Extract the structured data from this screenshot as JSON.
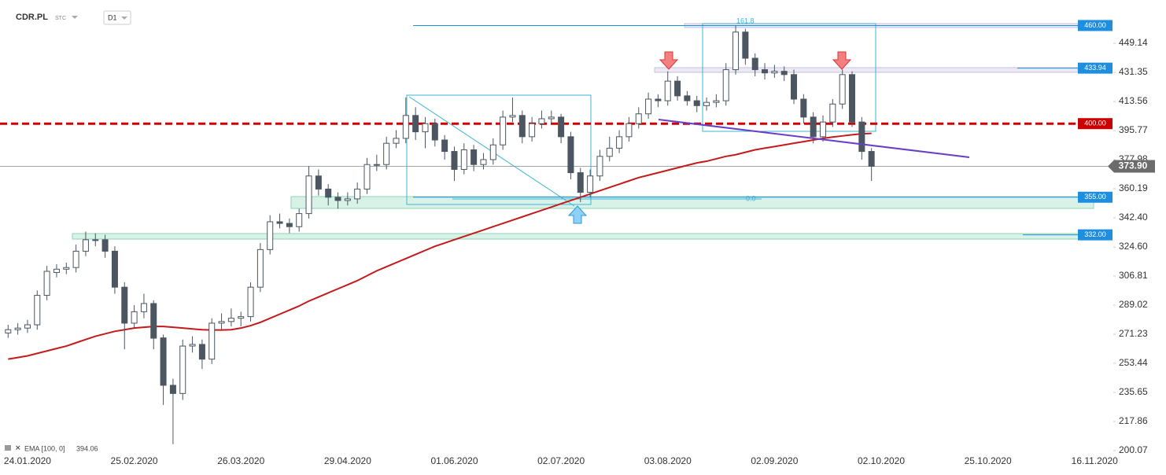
{
  "chart_data": {
    "type": "candlestick",
    "symbol": "CDR.PL",
    "source": "STC",
    "interval": "D1",
    "categories": [
      null,
      null,
      "24.01.2020",
      null,
      null,
      null,
      null,
      null,
      null,
      null,
      null,
      null,
      null,
      "25.02.2020",
      null,
      null,
      null,
      null,
      null,
      null,
      null,
      null,
      null,
      null,
      "26.03.2020",
      null,
      null,
      null,
      null,
      null,
      null,
      null,
      null,
      null,
      null,
      "29.04.2020",
      null,
      null,
      null,
      null,
      null,
      null,
      null,
      null,
      null,
      null,
      "01.06.2020",
      null,
      null,
      null,
      null,
      null,
      null,
      null,
      null,
      null,
      null,
      "02.07.2020",
      null,
      null,
      null,
      null,
      null,
      null,
      null,
      null,
      null,
      null,
      "03.08.2020",
      null,
      null,
      null,
      null,
      null,
      null,
      null,
      null,
      null,
      null,
      "02.09.2020",
      null,
      null,
      null,
      null,
      null,
      null,
      null,
      null,
      null,
      null,
      "02.10.2020",
      null,
      null,
      null,
      null,
      null,
      null,
      null,
      null,
      null,
      null,
      "25.10.2020",
      null,
      null,
      null,
      null,
      null,
      null,
      null,
      null,
      null,
      null,
      "16.11.2020"
    ],
    "open": [
      272,
      274,
      275,
      277,
      295,
      309,
      311,
      312,
      322,
      329,
      329,
      322,
      300,
      278,
      285,
      290,
      269,
      240,
      235,
      264,
      265,
      256,
      278,
      279,
      281,
      282,
      300,
      323,
      340,
      339,
      337,
      345,
      368,
      360,
      355,
      353,
      354,
      360,
      375,
      375,
      388,
      391,
      405,
      395,
      400,
      390,
      383,
      372,
      384,
      375,
      378,
      387,
      404,
      405,
      392,
      400,
      403,
      404,
      392,
      370,
      358,
      368,
      380,
      385,
      392,
      400,
      406,
      415,
      414,
      426,
      417,
      414,
      411,
      413,
      414,
      433,
      456,
      440,
      433,
      431,
      432,
      430,
      415,
      404,
      392,
      401,
      412,
      430,
      401,
      383,
      null,
      null,
      null,
      null,
      null,
      null,
      null,
      null,
      null,
      null,
      null,
      null,
      null,
      null,
      null,
      null,
      null,
      null,
      null,
      null,
      null,
      null,
      null
    ],
    "high": [
      277,
      278,
      280,
      298,
      313,
      314,
      315,
      326,
      334,
      333,
      332,
      325,
      303,
      289,
      296,
      292,
      271,
      244,
      268,
      270,
      268,
      281,
      284,
      287,
      285,
      303,
      327,
      344,
      345,
      342,
      348,
      374,
      372,
      363,
      358,
      358,
      364,
      379,
      381,
      392,
      396,
      416,
      410,
      404,
      403,
      393,
      386,
      388,
      387,
      382,
      391,
      408,
      416,
      408,
      404,
      408,
      408,
      406,
      395,
      373,
      372,
      384,
      392,
      396,
      404,
      410,
      419,
      418,
      432,
      429,
      420,
      417,
      416,
      418,
      437,
      460,
      458,
      443,
      437,
      436,
      435,
      433,
      418,
      407,
      405,
      415,
      433,
      432,
      404,
      385,
      null,
      null,
      null,
      null,
      null,
      null,
      null,
      null,
      null,
      null,
      null,
      null,
      null,
      null,
      null,
      null,
      null,
      null,
      null,
      null,
      null,
      null,
      null
    ],
    "low": [
      269,
      271,
      272,
      274,
      292,
      306,
      308,
      309,
      319,
      325,
      318,
      296,
      262,
      275,
      281,
      262,
      228,
      204,
      231,
      260,
      250,
      253,
      274,
      276,
      276,
      279,
      297,
      320,
      336,
      333,
      334,
      342,
      356,
      350,
      348,
      350,
      351,
      357,
      371,
      372,
      385,
      388,
      390,
      385,
      386,
      378,
      365,
      369,
      371,
      372,
      375,
      384,
      401,
      388,
      389,
      397,
      400,
      388,
      366,
      352,
      355,
      365,
      377,
      382,
      389,
      397,
      403,
      410,
      411,
      414,
      411,
      407,
      408,
      410,
      411,
      430,
      436,
      429,
      427,
      428,
      426,
      412,
      400,
      388,
      389,
      398,
      409,
      398,
      378,
      365,
      null,
      null,
      null,
      null,
      null,
      null,
      null,
      null,
      null,
      null,
      null,
      null,
      null,
      null,
      null,
      null,
      null,
      null,
      null,
      null,
      null,
      null,
      null
    ],
    "close": [
      274,
      275,
      277,
      295,
      309.7,
      311,
      312,
      322,
      329,
      329,
      322,
      300,
      278,
      285,
      290,
      268.8,
      240,
      235,
      264,
      265,
      256,
      278,
      279,
      281,
      282,
      300,
      323,
      340,
      339,
      337,
      345,
      368,
      360,
      355,
      353,
      354,
      360,
      375,
      375,
      388,
      391,
      405,
      395,
      400,
      390,
      383,
      372,
      384,
      375,
      378,
      387,
      404,
      405,
      392,
      400,
      403,
      404,
      392,
      370,
      358,
      368,
      380,
      385,
      392,
      400,
      406,
      415,
      414,
      426,
      417,
      414,
      411,
      413,
      414,
      433,
      456,
      440,
      433,
      431,
      432,
      430,
      415,
      404,
      392,
      401,
      412,
      430,
      401,
      383,
      373.9,
      null,
      null,
      null,
      null,
      null,
      null,
      null,
      null,
      null,
      null,
      null,
      null,
      null,
      null,
      null,
      null,
      null,
      null,
      null,
      null,
      null,
      null,
      null
    ],
    "up_color": "#ffffff",
    "down_color": "#4b5661",
    "ema": {
      "name": "EMA [100, 0]",
      "color": "#c41a1a",
      "values": [
        256,
        257,
        258,
        259.5,
        261,
        262.5,
        264,
        266,
        268,
        270,
        271.5,
        273,
        274,
        275,
        275.5,
        276,
        276,
        275.5,
        275,
        274.5,
        274,
        273.8,
        273.8,
        274,
        275,
        276.5,
        278.5,
        281,
        283.5,
        286,
        288.5,
        291.5,
        294,
        296.5,
        299,
        301.5,
        304,
        307,
        310,
        312.5,
        315,
        317.5,
        320,
        322.5,
        325,
        327,
        329,
        331,
        333,
        335,
        337,
        339,
        341,
        343,
        345,
        347,
        349,
        351,
        353,
        355,
        357,
        359,
        361,
        363,
        365,
        367,
        368.5,
        370,
        371.5,
        373,
        374.5,
        376,
        377,
        378.5,
        380,
        381,
        382.5,
        384,
        385,
        386,
        387,
        388,
        389,
        390,
        391,
        391.8,
        392.5,
        393.2,
        393.8,
        394.06,
        null,
        null,
        null,
        null,
        null,
        null,
        null,
        null,
        null,
        null,
        null,
        null,
        null,
        null,
        null,
        null,
        null,
        null,
        null,
        null,
        null,
        null,
        null
      ]
    },
    "ylim": [
      199.1,
      475.6
    ],
    "yticks": [
      200.07,
      217.86,
      235.65,
      253.44,
      271.23,
      289.02,
      306.81,
      {
        "value": 324.6,
        "label": "324.60"
      },
      {
        "value": 342.4,
        "label": "342.40"
      },
      360.19,
      377.98,
      395.77,
      413.56,
      431.35,
      449.14
    ],
    "levels": [
      {
        "value": 460,
        "label": "460.00",
        "color": "#1e8fe0"
      },
      {
        "value": 433.94,
        "color": "#1e8fe0"
      },
      {
        "value": 400,
        "label": "400.00",
        "color": "#cc0000"
      },
      {
        "value": 355,
        "label": "355.00",
        "color": "#1e8fe0"
      },
      {
        "value": 332,
        "label": "332.00",
        "color": "#1e8fe0"
      }
    ],
    "current_price": {
      "value": 373.9,
      "label": "373.90"
    },
    "annotations": [
      "161.8",
      "0.0"
    ]
  }
}
